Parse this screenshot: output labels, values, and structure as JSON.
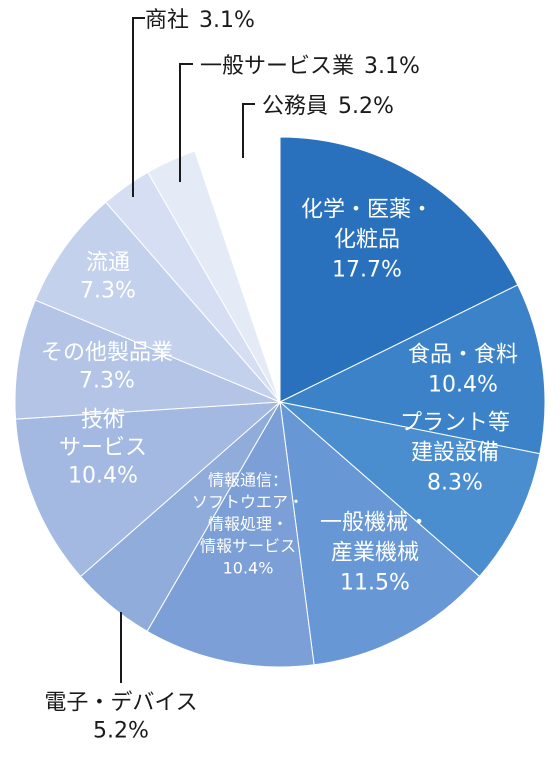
{
  "chart_data": {
    "type": "pie",
    "title": "",
    "start_angle_deg": 0,
    "direction": "clockwise",
    "slices": [
      {
        "lines": [
          "化学・医薬・",
          "化粧品"
        ],
        "value_label": "17.7%",
        "value": 17.7,
        "color": "#2a71bd",
        "label_pos": "inside"
      },
      {
        "lines": [
          "食品・食料"
        ],
        "value_label": "10.4%",
        "value": 10.4,
        "color": "#3b82c8",
        "label_pos": "inside"
      },
      {
        "lines": [
          "プラント等",
          "建設設備"
        ],
        "value_label": "8.3%",
        "value": 8.3,
        "color": "#4b8ed0",
        "label_pos": "inside"
      },
      {
        "lines": [
          "一般機械・",
          "産業機械"
        ],
        "value_label": "11.5%",
        "value": 11.5,
        "color": "#6797d4",
        "label_pos": "inside"
      },
      {
        "lines": [
          "情報通信：",
          "ソフトウエア・",
          "情報処理・",
          "情報サービス"
        ],
        "value_label": "10.4%",
        "value": 10.4,
        "color": "#7b9fd6",
        "label_pos": "inside",
        "small": true
      },
      {
        "lines": [
          "電子・デバイス"
        ],
        "value_label": "5.2%",
        "value": 5.2,
        "color": "#90acdb",
        "label_pos": "outside"
      },
      {
        "lines": [
          "技術",
          "サービス"
        ],
        "value_label": "10.4%",
        "value": 10.4,
        "color": "#a4b9e1",
        "label_pos": "inside"
      },
      {
        "lines": [
          "その他製品業"
        ],
        "value_label": "7.3%",
        "value": 7.3,
        "color": "#b3c4e6",
        "label_pos": "inside"
      },
      {
        "lines": [
          "流通"
        ],
        "value_label": "7.3%",
        "value": 7.3,
        "color": "#c4d1ec",
        "label_pos": "inside"
      },
      {
        "lines": [
          "商社"
        ],
        "value_label": "3.1%",
        "value": 3.1,
        "color": "#d5def2",
        "label_pos": "outside"
      },
      {
        "lines": [
          "一般サービス業"
        ],
        "value_label": "3.1%",
        "value": 3.1,
        "color": "#e5eaf7",
        "label_pos": "outside"
      },
      {
        "lines": [
          "公務員"
        ],
        "value_label": "5.2%",
        "value": 5.2,
        "color": "#ffffff",
        "label_pos": "outside"
      }
    ]
  }
}
